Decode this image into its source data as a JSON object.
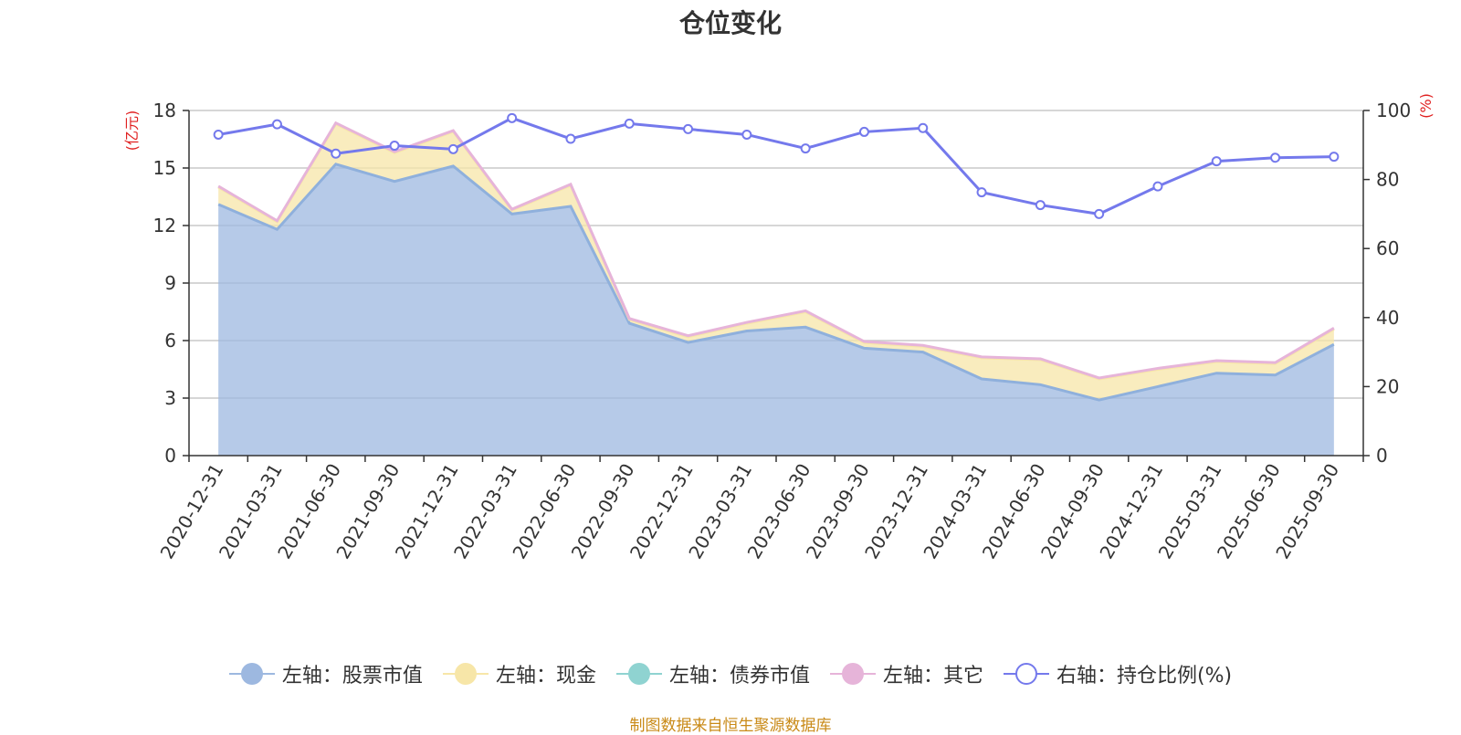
{
  "chart_data": {
    "type": "area",
    "title": "仓位变化",
    "x": [
      "2020-12-31",
      "2021-03-31",
      "2021-06-30",
      "2021-09-30",
      "2021-12-31",
      "2022-03-31",
      "2022-06-30",
      "2022-09-30",
      "2022-12-31",
      "2023-03-31",
      "2023-06-30",
      "2023-09-30",
      "2023-12-31",
      "2024-03-31",
      "2024-06-30",
      "2024-09-30",
      "2024-12-31",
      "2025-03-31",
      "2025-06-30",
      "2025-09-30"
    ],
    "left_axis": {
      "unit": "(亿元)",
      "ylim": [
        0,
        18
      ],
      "ticks": [
        0,
        3,
        6,
        9,
        12,
        15,
        18
      ]
    },
    "right_axis": {
      "unit": "(%)",
      "ylim": [
        0,
        100
      ],
      "ticks": [
        0,
        20,
        40,
        60,
        80,
        100
      ]
    },
    "series": [
      {
        "name": "左轴：股票市值",
        "axis": "left",
        "type": "area",
        "color": "#9db8e0",
        "values": [
          13.1,
          11.8,
          15.2,
          14.3,
          15.1,
          12.6,
          13.0,
          6.9,
          5.9,
          6.5,
          6.7,
          5.6,
          5.4,
          4.0,
          3.7,
          2.9,
          3.6,
          4.3,
          4.2,
          5.8
        ]
      },
      {
        "name": "左轴：现金",
        "axis": "left",
        "type": "area",
        "color": "#f7e6a8",
        "values": [
          0.9,
          0.4,
          2.1,
          1.5,
          1.8,
          0.2,
          1.1,
          0.2,
          0.3,
          0.4,
          0.8,
          0.3,
          0.3,
          1.1,
          1.3,
          1.1,
          0.9,
          0.6,
          0.6,
          0.8
        ]
      },
      {
        "name": "左轴：债券市值",
        "axis": "left",
        "type": "area",
        "color": "#8fd3d1",
        "values": [
          0,
          0,
          0,
          0,
          0,
          0,
          0,
          0,
          0,
          0,
          0,
          0,
          0,
          0,
          0,
          0,
          0,
          0,
          0,
          0
        ]
      },
      {
        "name": "左轴：其它",
        "axis": "left",
        "type": "area",
        "color": "#e6b4d9",
        "values": [
          0.05,
          0.05,
          0.05,
          0.05,
          0.05,
          0.05,
          0.05,
          0.05,
          0.05,
          0.05,
          0.05,
          0.05,
          0.05,
          0.05,
          0.05,
          0.05,
          0.05,
          0.05,
          0.05,
          0.05
        ]
      },
      {
        "name": "右轴：持仓比例(%)",
        "axis": "right",
        "type": "line",
        "color": "#7479ec",
        "values": [
          93.0,
          96.0,
          87.5,
          89.8,
          88.8,
          97.8,
          91.8,
          96.2,
          94.6,
          93.0,
          89.0,
          93.8,
          94.9,
          76.3,
          72.6,
          70.0,
          78.0,
          85.3,
          86.3,
          86.6
        ]
      }
    ],
    "grid": true,
    "legend_position": "bottom"
  },
  "legend": [
    {
      "label": "左轴：股票市值",
      "color": "#9db8e0",
      "style": "filled"
    },
    {
      "label": "左轴：现金",
      "color": "#f7e6a8",
      "style": "filled"
    },
    {
      "label": "左轴：债券市值",
      "color": "#8fd3d1",
      "style": "filled"
    },
    {
      "label": "左轴：其它",
      "color": "#e6b4d9",
      "style": "filled"
    },
    {
      "label": "右轴：持仓比例(%)",
      "color": "#7479ec",
      "style": "hollow"
    }
  ],
  "source": "制图数据来自恒生聚源数据库"
}
